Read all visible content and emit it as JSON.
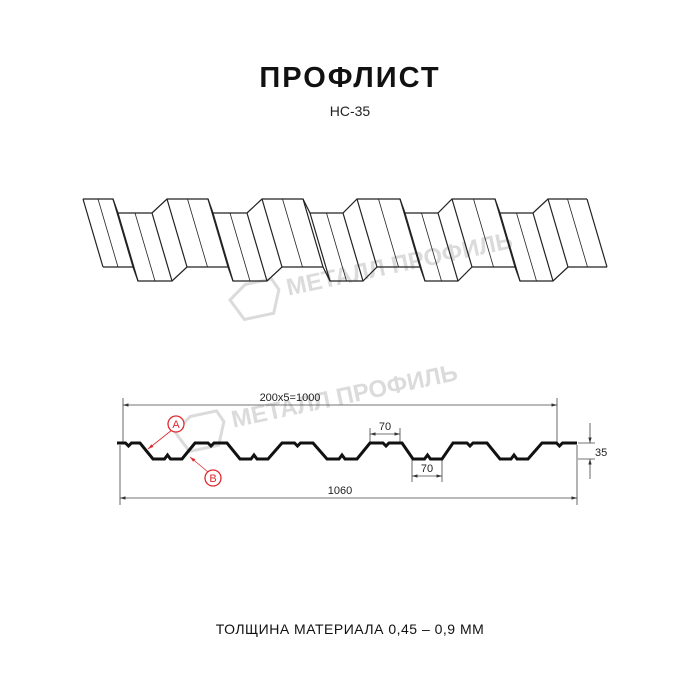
{
  "title": "ПРОФЛИСТ",
  "subtitle": "НС-35",
  "watermark": "МЕТАЛЛ ПРОФИЛЬ",
  "dimensions": {
    "pitch": "200x5=1000",
    "top_width": "70",
    "bottom_width": "70",
    "height": "35",
    "total_width": "1060"
  },
  "markers": {
    "a": "A",
    "b": "B"
  },
  "marker_color": "#e0282e",
  "footer": "ТОЛЩИНА МАТЕРИАЛА 0,45 – 0,9 ММ"
}
